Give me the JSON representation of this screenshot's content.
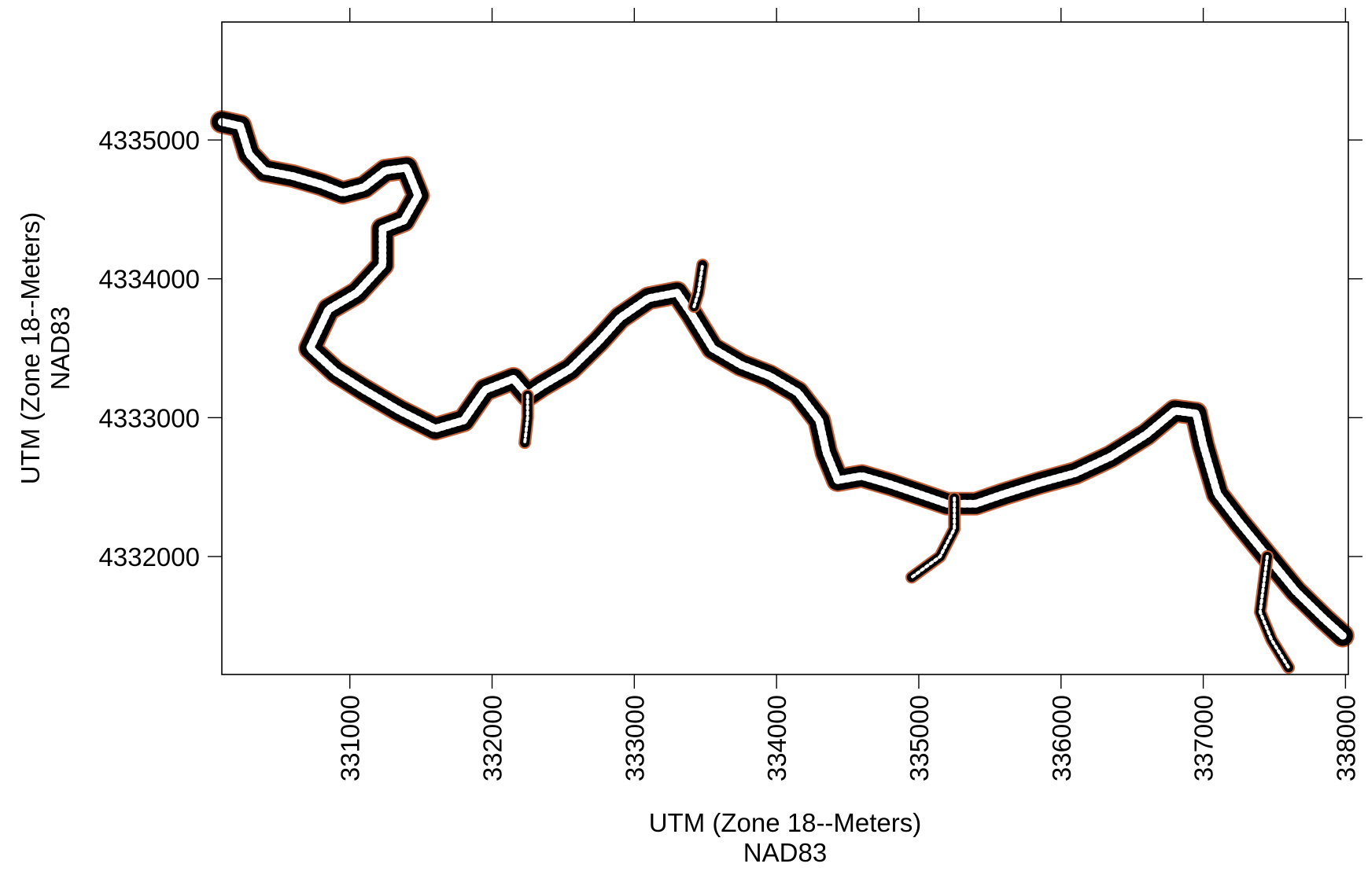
{
  "map": {
    "x_axis": {
      "title_line1": "UTM (Zone 18--Meters)",
      "title_line2": "NAD83",
      "range": [
        330100,
        338020
      ],
      "ticks": [
        331000,
        332000,
        333000,
        334000,
        335000,
        336000,
        337000,
        338000
      ],
      "tick_labels": [
        "331000",
        "332000",
        "333000",
        "334000",
        "335000",
        "336000",
        "337000",
        "338000"
      ]
    },
    "y_axis": {
      "title_line1": "UTM (Zone 18--Meters)",
      "title_line2": "NAD83",
      "range": [
        4331150,
        4335850
      ],
      "ticks": [
        4332000,
        4333000,
        4334000,
        4335000
      ],
      "tick_labels": [
        "4332000",
        "4333000",
        "4334000",
        "4335000"
      ]
    },
    "colors": {
      "shoreline": "#c8643c",
      "grid_mesh": "#000000",
      "frame": "#000000"
    },
    "centerline": [
      [
        330100,
        4335130
      ],
      [
        330230,
        4335100
      ],
      [
        330290,
        4334900
      ],
      [
        330400,
        4334780
      ],
      [
        330600,
        4334740
      ],
      [
        330800,
        4334680
      ],
      [
        330950,
        4334620
      ],
      [
        331100,
        4334660
      ],
      [
        331250,
        4334780
      ],
      [
        331400,
        4334800
      ],
      [
        331480,
        4334600
      ],
      [
        331380,
        4334420
      ],
      [
        331230,
        4334360
      ],
      [
        331230,
        4334100
      ],
      [
        331050,
        4333900
      ],
      [
        330850,
        4333780
      ],
      [
        330720,
        4333500
      ],
      [
        330900,
        4333330
      ],
      [
        331100,
        4333200
      ],
      [
        331350,
        4333050
      ],
      [
        331600,
        4332920
      ],
      [
        331800,
        4332980
      ],
      [
        331950,
        4333200
      ],
      [
        332150,
        4333280
      ],
      [
        332250,
        4333160
      ],
      [
        332350,
        4333230
      ],
      [
        332550,
        4333350
      ],
      [
        332750,
        4333550
      ],
      [
        332900,
        4333720
      ],
      [
        333100,
        4333860
      ],
      [
        333300,
        4333900
      ],
      [
        333400,
        4333750
      ],
      [
        333550,
        4333500
      ],
      [
        333750,
        4333380
      ],
      [
        333950,
        4333300
      ],
      [
        334150,
        4333180
      ],
      [
        334300,
        4332980
      ],
      [
        334350,
        4332750
      ],
      [
        334430,
        4332550
      ],
      [
        334600,
        4332580
      ],
      [
        334800,
        4332520
      ],
      [
        335000,
        4332450
      ],
      [
        335200,
        4332380
      ],
      [
        335400,
        4332380
      ],
      [
        335600,
        4332450
      ],
      [
        335850,
        4332530
      ],
      [
        336100,
        4332600
      ],
      [
        336350,
        4332720
      ],
      [
        336600,
        4332880
      ],
      [
        336800,
        4333050
      ],
      [
        336950,
        4333030
      ],
      [
        337000,
        4332800
      ],
      [
        337100,
        4332450
      ],
      [
        337250,
        4332250
      ],
      [
        337450,
        4332000
      ],
      [
        337650,
        4331750
      ],
      [
        337850,
        4331550
      ],
      [
        337980,
        4331430
      ]
    ],
    "branches": [
      [
        [
          335250,
          4332420
        ],
        [
          335250,
          4332200
        ],
        [
          335150,
          4332000
        ],
        [
          334950,
          4331850
        ]
      ],
      [
        [
          332250,
          4333160
        ],
        [
          332250,
          4333000
        ],
        [
          332230,
          4332820
        ]
      ],
      [
        [
          333420,
          4333800
        ],
        [
          333450,
          4333900
        ],
        [
          333480,
          4334100
        ]
      ],
      [
        [
          337450,
          4332000
        ],
        [
          337400,
          4331600
        ],
        [
          337480,
          4331400
        ],
        [
          337600,
          4331200
        ]
      ]
    ]
  }
}
